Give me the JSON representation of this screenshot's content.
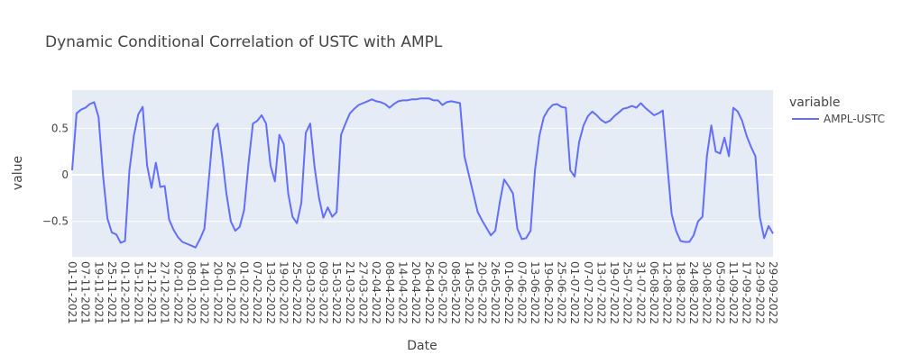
{
  "chart_data": {
    "type": "line",
    "title": "Dynamic Conditional Correlation of USTC with AMPL",
    "x_label": "Date",
    "y_label": "value",
    "legend_title": "variable",
    "categories": [
      "01-11-2021",
      null,
      null,
      "07-11-2021",
      null,
      null,
      "19-11-2021",
      null,
      null,
      "25-11-2021",
      null,
      null,
      "01-12-2021",
      null,
      null,
      "15-12-2021",
      null,
      null,
      "21-12-2021",
      null,
      null,
      "27-12-2021",
      null,
      null,
      "02-01-2022",
      null,
      null,
      "08-01-2022",
      null,
      null,
      "14-01-2022",
      null,
      null,
      "20-01-2022",
      null,
      null,
      "26-01-2022",
      null,
      null,
      "01-02-2022",
      null,
      null,
      "07-02-2022",
      null,
      null,
      "13-02-2022",
      null,
      null,
      "19-02-2022",
      null,
      null,
      "25-02-2022",
      null,
      null,
      "03-03-2022",
      null,
      null,
      "09-03-2022",
      null,
      null,
      "15-03-2022",
      null,
      null,
      "21-03-2022",
      null,
      null,
      "27-03-2022",
      null,
      null,
      "02-04-2022",
      null,
      null,
      "08-04-2022",
      null,
      null,
      "14-04-2022",
      null,
      null,
      "20-04-2022",
      null,
      null,
      "26-04-2022",
      null,
      null,
      "02-05-2022",
      null,
      null,
      "08-05-2022",
      null,
      null,
      "14-05-2022",
      null,
      null,
      "20-05-2022",
      null,
      null,
      "26-05-2022",
      null,
      null,
      "01-06-2022",
      null,
      null,
      "07-06-2022",
      null,
      null,
      "13-06-2022",
      null,
      null,
      "19-06-2022",
      null,
      null,
      "25-06-2022",
      null,
      null,
      "01-07-2022",
      null,
      null,
      "07-07-2022",
      null,
      null,
      "13-07-2022",
      null,
      null,
      "19-07-2022",
      null,
      null,
      "25-07-2022",
      null,
      null,
      "31-07-2022",
      null,
      null,
      "06-08-2022",
      null,
      null,
      "12-08-2022",
      null,
      null,
      "18-08-2022",
      null,
      null,
      "24-08-2022",
      null,
      null,
      "30-08-2022",
      null,
      null,
      "05-09-2022",
      null,
      null,
      "11-09-2022",
      null,
      null,
      "17-09-2022",
      null,
      null,
      "23-09-2022",
      null,
      null,
      "29-09-2022"
    ],
    "series": [
      {
        "name": "AMPL-USTC",
        "color": "#636efa",
        "values": [
          0.05,
          0.66,
          0.7,
          0.72,
          0.76,
          0.78,
          0.62,
          0.0,
          -0.47,
          -0.62,
          -0.64,
          -0.73,
          -0.71,
          0.05,
          0.42,
          0.65,
          0.73,
          0.1,
          -0.14,
          0.13,
          -0.13,
          -0.12,
          -0.48,
          -0.59,
          -0.67,
          -0.72,
          -0.74,
          -0.76,
          -0.78,
          -0.69,
          -0.58,
          -0.05,
          0.48,
          0.55,
          0.2,
          -0.2,
          -0.5,
          -0.6,
          -0.56,
          -0.38,
          0.12,
          0.55,
          0.58,
          0.64,
          0.55,
          0.1,
          -0.07,
          0.43,
          0.33,
          -0.2,
          -0.45,
          -0.52,
          -0.3,
          0.45,
          0.55,
          0.08,
          -0.25,
          -0.46,
          -0.35,
          -0.45,
          -0.4,
          0.43,
          0.55,
          0.66,
          0.71,
          0.75,
          0.77,
          0.79,
          0.81,
          0.79,
          0.78,
          0.76,
          0.72,
          0.76,
          0.79,
          0.8,
          0.8,
          0.81,
          0.81,
          0.82,
          0.82,
          0.82,
          0.8,
          0.8,
          0.75,
          0.78,
          0.79,
          0.78,
          0.77,
          0.2,
          0.0,
          -0.2,
          -0.4,
          -0.49,
          -0.57,
          -0.65,
          -0.6,
          -0.3,
          -0.05,
          -0.12,
          -0.2,
          -0.58,
          -0.69,
          -0.68,
          -0.6,
          0.05,
          0.42,
          0.62,
          0.7,
          0.75,
          0.76,
          0.73,
          0.72,
          0.05,
          -0.02,
          0.35,
          0.53,
          0.63,
          0.68,
          0.64,
          0.59,
          0.56,
          0.58,
          0.63,
          0.67,
          0.71,
          0.72,
          0.74,
          0.72,
          0.77,
          0.72,
          0.68,
          0.64,
          0.66,
          0.69,
          0.12,
          -0.42,
          -0.6,
          -0.71,
          -0.72,
          -0.72,
          -0.65,
          -0.5,
          -0.45,
          0.2,
          0.53,
          0.25,
          0.23,
          0.4,
          0.2,
          0.72,
          0.68,
          0.58,
          0.42,
          0.3,
          0.2,
          -0.45,
          -0.68,
          -0.55,
          -0.63
        ]
      }
    ],
    "ylim": [
      -0.88,
      0.91
    ],
    "yticks": [
      {
        "value": -0.5,
        "label": "−0.5"
      },
      0,
      0.5
    ],
    "grid": true,
    "legend": "right"
  }
}
